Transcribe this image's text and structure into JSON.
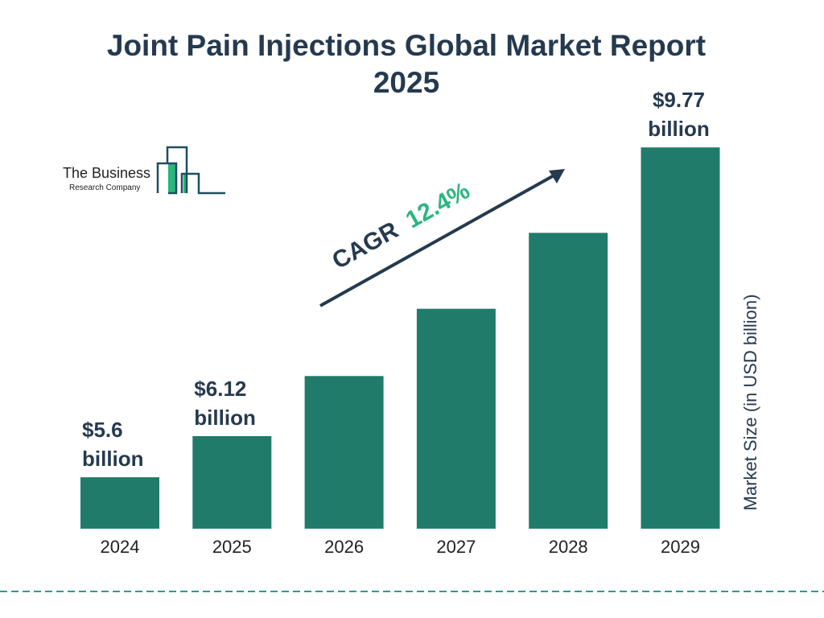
{
  "chart_data": {
    "type": "bar",
    "title": "Joint Pain Injections Global Market Report 2025",
    "ylabel": "Market Size (in USD billion)",
    "categories": [
      "2024",
      "2025",
      "2026",
      "2027",
      "2028",
      "2029"
    ],
    "values": [
      5.6,
      6.12,
      6.88,
      7.73,
      8.69,
      9.77
    ],
    "data_labels": [
      {
        "index": 0,
        "line1": "$5.6",
        "line2": "billion"
      },
      {
        "index": 1,
        "line1": "$6.12",
        "line2": "billion"
      },
      {
        "index": 5,
        "line1": "$9.77",
        "line2": "billion"
      }
    ],
    "annotation": {
      "label": "CAGR",
      "value": "12.4%"
    },
    "grid": false,
    "colors": {
      "bar": "#207b6b",
      "text": "#253a4f",
      "cagr": "#2bb57f",
      "divider": "#2a9d8f"
    }
  },
  "logo": {
    "line1": "The Business",
    "line2": "Research Company"
  }
}
